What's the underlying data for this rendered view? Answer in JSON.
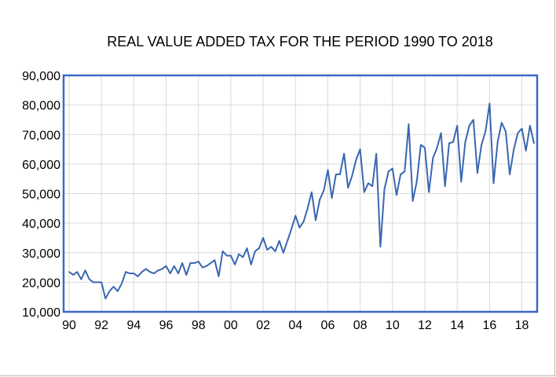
{
  "chart_data": {
    "type": "line",
    "title": "REAL VALUE ADDED TAX FOR THE PERIOD 1990 TO 2018",
    "xlabel": "",
    "ylabel": "",
    "x_tick_labels": [
      "90",
      "92",
      "94",
      "96",
      "98",
      "00",
      "02",
      "04",
      "06",
      "08",
      "10",
      "12",
      "14",
      "16",
      "18"
    ],
    "y_ticks": [
      10000,
      20000,
      30000,
      40000,
      50000,
      60000,
      70000,
      80000,
      90000
    ],
    "y_tick_labels": [
      "10,000",
      "20,000",
      "30,000",
      "40,000",
      "50,000",
      "60,000",
      "70,000",
      "80,000",
      "90,000"
    ],
    "ylim": [
      10000,
      90000
    ],
    "x_start": "1990Q1",
    "frequency": "quarterly",
    "grid": true,
    "legend": "none",
    "series_color": "#3a66b0",
    "series": [
      {
        "values": [
          23500,
          22500,
          23500,
          21000,
          24000,
          21000,
          20000,
          20000,
          20000,
          14500,
          17000,
          18500,
          17000,
          19500,
          23500,
          23000,
          23000,
          22000,
          23500,
          24500,
          23500,
          23000,
          24000,
          24500,
          25500,
          23000,
          25500,
          23000,
          26500,
          22500,
          26500,
          26500,
          27000,
          25000,
          25500,
          26500,
          27500,
          22000,
          30500,
          29000,
          29000,
          26000,
          29500,
          28500,
          31500,
          26000,
          30500,
          31500,
          35000,
          31000,
          32000,
          30500,
          34000,
          30000,
          34000,
          38000,
          42500,
          38500,
          40500,
          45000,
          50500,
          41000,
          48000,
          51000,
          58000,
          48500,
          56500,
          56500,
          63500,
          52000,
          56000,
          61500,
          65000,
          50500,
          53500,
          52500,
          63500,
          32000,
          51500,
          57500,
          58500,
          49500,
          56500,
          57500,
          73500,
          47500,
          54000,
          66500,
          65500,
          50500,
          62000,
          65500,
          70500,
          52500,
          67000,
          67500,
          73000,
          54000,
          67500,
          73000,
          75000,
          57000,
          66500,
          71000,
          80500,
          53500,
          67500,
          74000,
          71000,
          56500,
          65000,
          70500,
          72000,
          64500,
          73000,
          67000
        ]
      }
    ]
  }
}
